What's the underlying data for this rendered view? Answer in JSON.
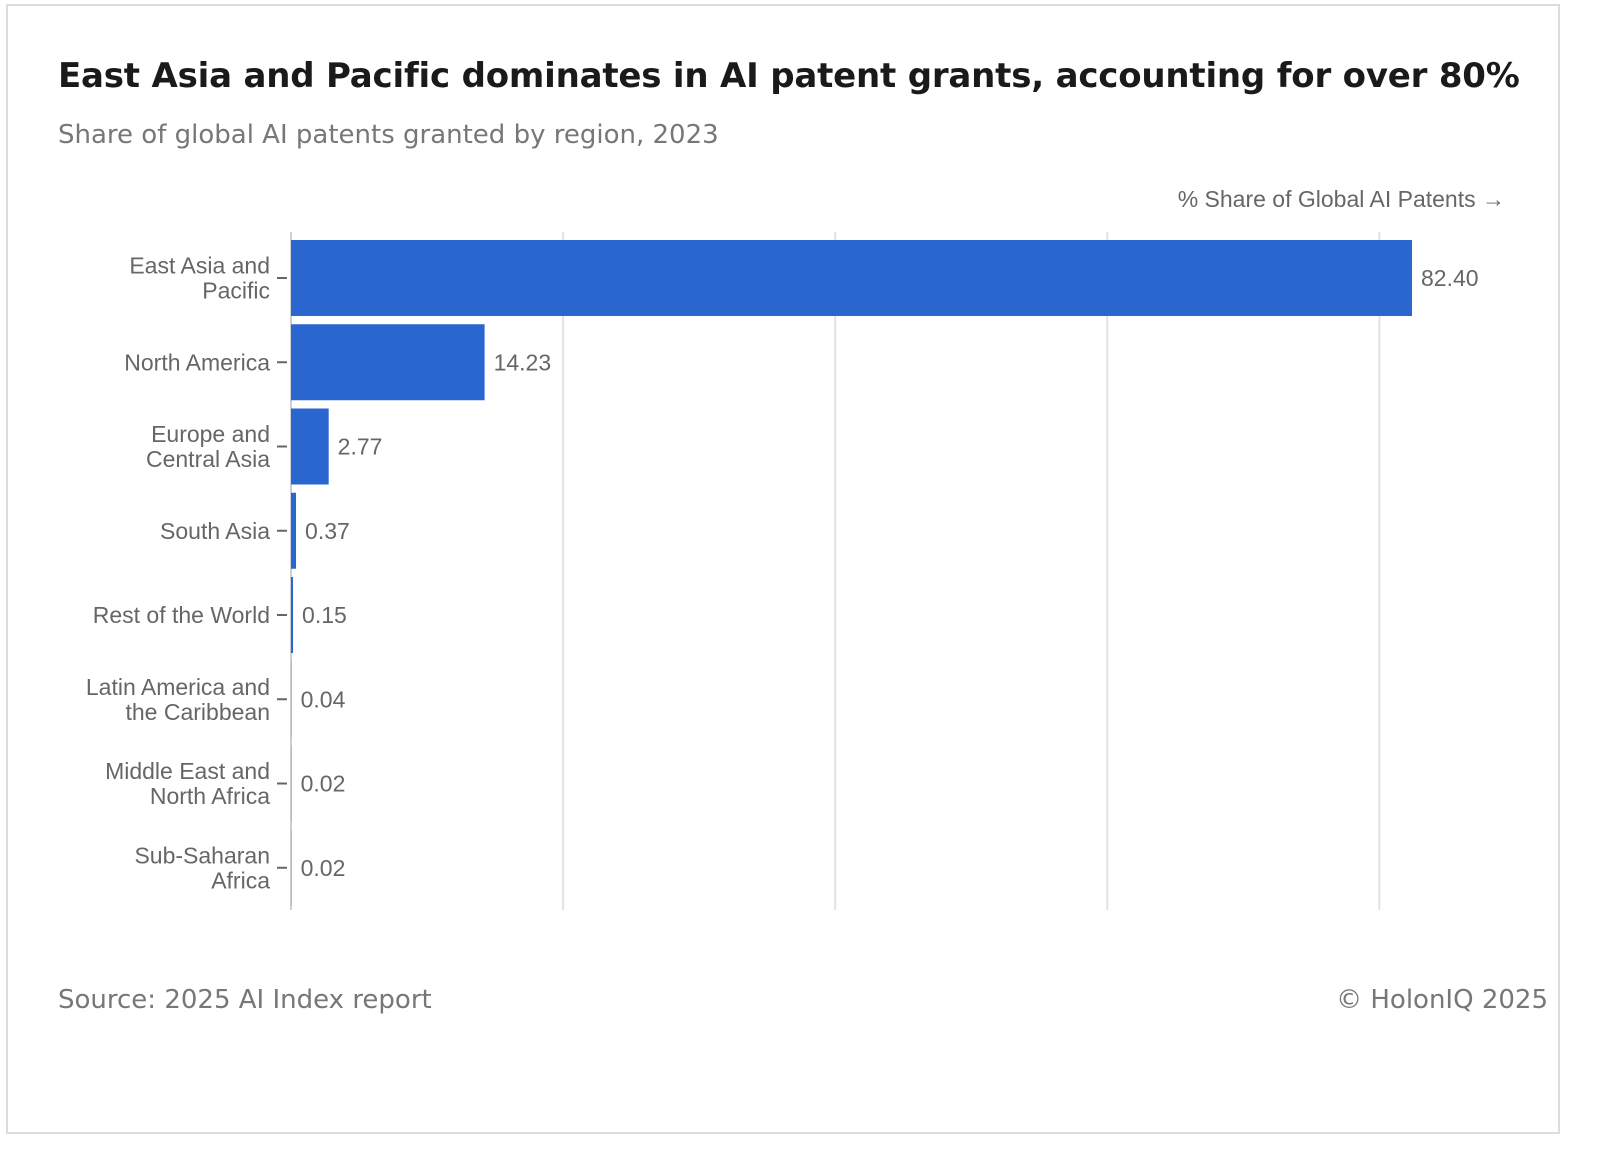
{
  "header": {
    "title": "East Asia and Pacific dominates in AI patent grants, accounting for over 80%",
    "subtitle": "Share of global AI patents granted by region, 2023"
  },
  "footer": {
    "source": "Source: 2025 AI Index report",
    "copyright": "© HolonIQ 2025"
  },
  "chart_data": {
    "type": "bar",
    "orientation": "horizontal",
    "title": "East Asia and Pacific dominates in AI patent grants, accounting for over 80%",
    "subtitle": "Share of global AI patents granted by region, 2023",
    "xlabel": "% Share of Global AI Patents →",
    "ylabel": "",
    "xlim": [
      0,
      82.4
    ],
    "grid_values": [
      0,
      20,
      40,
      60,
      80
    ],
    "grid": true,
    "bar_color": "#2966cf",
    "categories": [
      [
        "East Asia and",
        "Pacific"
      ],
      [
        "North America"
      ],
      [
        "Europe and",
        "Central Asia"
      ],
      [
        "South Asia"
      ],
      [
        "Rest of the World"
      ],
      [
        "Latin America and",
        "the Caribbean"
      ],
      [
        "Middle East and",
        "North Africa"
      ],
      [
        "Sub-Saharan",
        "Africa"
      ]
    ],
    "values": [
      82.4,
      14.23,
      2.77,
      0.37,
      0.15,
      0.04,
      0.02,
      0.02
    ],
    "value_labels": [
      "82.40",
      "14.23",
      "2.77",
      "0.37",
      "0.15",
      "0.04",
      "0.02",
      "0.02"
    ]
  }
}
